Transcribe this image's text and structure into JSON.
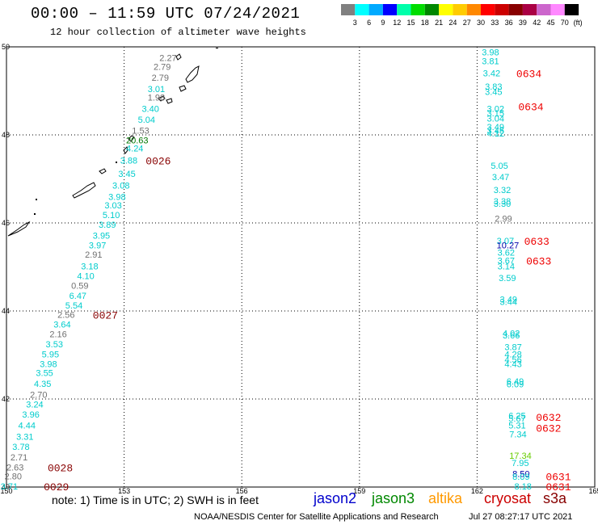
{
  "header": {
    "title": "00:00 – 11:59 UTC 07/24/2021",
    "subtitle": "12 hour collection of altimeter wave heights"
  },
  "colorbar": {
    "unit": "(ft)",
    "colors": [
      "#808080",
      "#00ffff",
      "#00aaff",
      "#0000ff",
      "#00ffaa",
      "#00dd00",
      "#008800",
      "#ffff00",
      "#ffcc00",
      "#ff8800",
      "#ff0000",
      "#cc0000",
      "#880000",
      "#aa0044",
      "#cc66cc",
      "#ff88ff",
      "#000000"
    ],
    "labels": [
      "3",
      "6",
      "9",
      "12",
      "15",
      "18",
      "21",
      "24",
      "27",
      "30",
      "33",
      "36",
      "39",
      "42",
      "45",
      "70"
    ]
  },
  "map": {
    "lon_labels": [
      "150",
      "153",
      "156",
      "159",
      "162",
      "165"
    ],
    "lat_labels": [
      "50",
      "48",
      "46",
      "44",
      "42",
      "40"
    ],
    "lon_range": [
      150,
      165
    ],
    "lat_range": [
      40,
      50
    ]
  },
  "colors": {
    "cyan": "#00cccc",
    "gray": "#707070",
    "darkgreen": "#007700",
    "blue": "#0000aa",
    "lime": "#66cc00",
    "darkred": "#880000",
    "red": "#ee0000"
  },
  "chart_data": {
    "type": "scatter",
    "title": "12 hour collection of altimeter wave heights",
    "units": "ft",
    "track_west": [
      {
        "lon": 153.9,
        "lat": 49.75,
        "value": "2.27",
        "color": "gray"
      },
      {
        "lon": 153.75,
        "lat": 49.55,
        "value": "2.79",
        "color": "gray"
      },
      {
        "lon": 153.7,
        "lat": 49.3,
        "value": "2.79",
        "color": "gray"
      },
      {
        "lon": 153.6,
        "lat": 49.05,
        "value": "3.01",
        "color": "cyan"
      },
      {
        "lon": 153.6,
        "lat": 48.85,
        "value": "1.98",
        "color": "gray"
      },
      {
        "lon": 153.45,
        "lat": 48.6,
        "value": "3.40",
        "color": "cyan"
      },
      {
        "lon": 153.35,
        "lat": 48.35,
        "value": "5.04",
        "color": "cyan"
      },
      {
        "lon": 153.2,
        "lat": 48.1,
        "value": "1.53",
        "color": "gray"
      },
      {
        "lon": 153.05,
        "lat": 47.88,
        "value": "20.63",
        "color": "darkgreen"
      },
      {
        "lon": 153.05,
        "lat": 47.7,
        "value": "4.24",
        "color": "cyan"
      },
      {
        "lon": 152.9,
        "lat": 47.42,
        "value": "3.88",
        "color": "cyan"
      },
      {
        "lon": 152.85,
        "lat": 47.12,
        "value": "3.45",
        "color": "cyan"
      },
      {
        "lon": 152.7,
        "lat": 46.85,
        "value": "3.08",
        "color": "cyan"
      },
      {
        "lon": 152.6,
        "lat": 46.6,
        "value": "3.98",
        "color": "cyan"
      },
      {
        "lon": 152.5,
        "lat": 46.4,
        "value": "3.03",
        "color": "cyan"
      },
      {
        "lon": 152.45,
        "lat": 46.18,
        "value": "5.10",
        "color": "cyan"
      },
      {
        "lon": 152.35,
        "lat": 45.96,
        "value": "3.89",
        "color": "cyan"
      },
      {
        "lon": 152.2,
        "lat": 45.72,
        "value": "3.95",
        "color": "cyan"
      },
      {
        "lon": 152.1,
        "lat": 45.5,
        "value": "3.97",
        "color": "cyan"
      },
      {
        "lon": 152.0,
        "lat": 45.28,
        "value": "2.91",
        "color": "gray"
      },
      {
        "lon": 151.9,
        "lat": 45.02,
        "value": "3.18",
        "color": "cyan"
      },
      {
        "lon": 151.8,
        "lat": 44.8,
        "value": "4.10",
        "color": "cyan"
      },
      {
        "lon": 151.65,
        "lat": 44.58,
        "value": "0.59",
        "color": "gray"
      },
      {
        "lon": 151.6,
        "lat": 44.35,
        "value": "6.47",
        "color": "cyan"
      },
      {
        "lon": 151.5,
        "lat": 44.13,
        "value": "5.54",
        "color": "cyan"
      },
      {
        "lon": 151.3,
        "lat": 43.92,
        "value": "2.56",
        "color": "gray"
      },
      {
        "lon": 151.2,
        "lat": 43.7,
        "value": "3.64",
        "color": "cyan"
      },
      {
        "lon": 151.1,
        "lat": 43.48,
        "value": "2.16",
        "color": "gray"
      },
      {
        "lon": 151.0,
        "lat": 43.25,
        "value": "3.53",
        "color": "cyan"
      },
      {
        "lon": 150.9,
        "lat": 43.02,
        "value": "5.95",
        "color": "cyan"
      },
      {
        "lon": 150.85,
        "lat": 42.8,
        "value": "3.98",
        "color": "cyan"
      },
      {
        "lon": 150.75,
        "lat": 42.6,
        "value": "3.55",
        "color": "cyan"
      },
      {
        "lon": 150.7,
        "lat": 42.35,
        "value": "4.35",
        "color": "cyan"
      },
      {
        "lon": 150.6,
        "lat": 42.1,
        "value": "2.70",
        "color": "gray"
      },
      {
        "lon": 150.5,
        "lat": 41.88,
        "value": "3.24",
        "color": "cyan"
      },
      {
        "lon": 150.4,
        "lat": 41.65,
        "value": "3.96",
        "color": "cyan"
      },
      {
        "lon": 150.3,
        "lat": 41.4,
        "value": "4.44",
        "color": "cyan"
      },
      {
        "lon": 150.25,
        "lat": 41.15,
        "value": "3.31",
        "color": "cyan"
      },
      {
        "lon": 150.15,
        "lat": 40.92,
        "value": "3.78",
        "color": "cyan"
      },
      {
        "lon": 150.1,
        "lat": 40.68,
        "value": "2.71",
        "color": "gray"
      },
      {
        "lon": 150.0,
        "lat": 40.45,
        "value": "2.63",
        "color": "gray"
      },
      {
        "lon": 149.95,
        "lat": 40.25,
        "value": "2.80",
        "color": "gray"
      },
      {
        "lon": 149.85,
        "lat": 40.02,
        "value": "3.71",
        "color": "cyan"
      }
    ],
    "track_west_times": [
      {
        "lon": 153.55,
        "lat": 47.42,
        "value": "0026",
        "color": "darkred"
      },
      {
        "lon": 152.2,
        "lat": 43.92,
        "value": "0027",
        "color": "darkred"
      },
      {
        "lon": 151.05,
        "lat": 40.45,
        "value": "0028",
        "color": "darkred"
      },
      {
        "lon": 150.95,
        "lat": 40.02,
        "value": "0029",
        "color": "darkred"
      }
    ],
    "track_east": [
      {
        "lon": 162.12,
        "lat": 49.88,
        "value": "3.98",
        "color": "cyan"
      },
      {
        "lon": 162.12,
        "lat": 49.68,
        "value": "3.81",
        "color": "cyan"
      },
      {
        "lon": 162.15,
        "lat": 49.4,
        "value": "3.42",
        "color": "cyan"
      },
      {
        "lon": 162.2,
        "lat": 49.1,
        "value": "3.83",
        "color": "cyan"
      },
      {
        "lon": 162.2,
        "lat": 48.98,
        "value": "3.45",
        "color": "cyan"
      },
      {
        "lon": 162.25,
        "lat": 48.6,
        "value": "3.02",
        "color": "cyan"
      },
      {
        "lon": 162.25,
        "lat": 48.5,
        "value": "3.15",
        "color": "cyan"
      },
      {
        "lon": 162.25,
        "lat": 48.38,
        "value": "3.04",
        "color": "cyan"
      },
      {
        "lon": 162.25,
        "lat": 48.18,
        "value": "3.49",
        "color": "cyan"
      },
      {
        "lon": 162.25,
        "lat": 48.1,
        "value": "3.45",
        "color": "cyan"
      },
      {
        "lon": 162.25,
        "lat": 48.04,
        "value": "4.12",
        "color": "cyan"
      },
      {
        "lon": 162.35,
        "lat": 47.3,
        "value": "5.05",
        "color": "cyan"
      },
      {
        "lon": 162.38,
        "lat": 47.05,
        "value": "3.47",
        "color": "cyan"
      },
      {
        "lon": 162.42,
        "lat": 46.75,
        "value": "3.32",
        "color": "cyan"
      },
      {
        "lon": 162.42,
        "lat": 46.5,
        "value": "3.38",
        "color": "cyan"
      },
      {
        "lon": 162.42,
        "lat": 46.44,
        "value": "3.30",
        "color": "cyan"
      },
      {
        "lon": 162.45,
        "lat": 46.1,
        "value": "2.99",
        "color": "gray"
      },
      {
        "lon": 162.5,
        "lat": 45.6,
        "value": "3.07",
        "color": "cyan"
      },
      {
        "lon": 162.5,
        "lat": 45.5,
        "value": "10.27",
        "color": "blue"
      },
      {
        "lon": 162.52,
        "lat": 45.33,
        "value": "3.62",
        "color": "cyan"
      },
      {
        "lon": 162.52,
        "lat": 45.15,
        "value": "3.67",
        "color": "cyan"
      },
      {
        "lon": 162.52,
        "lat": 45.02,
        "value": "3.14",
        "color": "cyan"
      },
      {
        "lon": 162.55,
        "lat": 44.75,
        "value": "3.59",
        "color": "cyan"
      },
      {
        "lon": 162.58,
        "lat": 44.27,
        "value": "3.49",
        "color": "cyan"
      },
      {
        "lon": 162.58,
        "lat": 44.21,
        "value": "3.44",
        "color": "cyan"
      },
      {
        "lon": 162.65,
        "lat": 43.5,
        "value": "4.02",
        "color": "cyan"
      },
      {
        "lon": 162.65,
        "lat": 43.45,
        "value": "3.66",
        "color": "cyan"
      },
      {
        "lon": 162.7,
        "lat": 43.18,
        "value": "3.87",
        "color": "cyan"
      },
      {
        "lon": 162.7,
        "lat": 43.02,
        "value": "4.28",
        "color": "cyan"
      },
      {
        "lon": 162.7,
        "lat": 42.9,
        "value": "4.56",
        "color": "cyan"
      },
      {
        "lon": 162.7,
        "lat": 42.8,
        "value": "4.43",
        "color": "cyan"
      },
      {
        "lon": 162.75,
        "lat": 42.4,
        "value": "6.49",
        "color": "cyan"
      },
      {
        "lon": 162.75,
        "lat": 42.34,
        "value": "6.09",
        "color": "cyan"
      },
      {
        "lon": 162.8,
        "lat": 41.62,
        "value": "6.25",
        "color": "cyan"
      },
      {
        "lon": 162.8,
        "lat": 41.56,
        "value": "5.67",
        "color": "cyan"
      },
      {
        "lon": 162.8,
        "lat": 41.4,
        "value": "5.31",
        "color": "cyan"
      },
      {
        "lon": 162.82,
        "lat": 41.2,
        "value": "7.34",
        "color": "cyan"
      },
      {
        "lon": 162.82,
        "lat": 40.72,
        "value": "17.34",
        "color": "lime"
      },
      {
        "lon": 162.88,
        "lat": 40.55,
        "value": "7.95",
        "color": "cyan"
      },
      {
        "lon": 162.9,
        "lat": 40.3,
        "value": "8.50",
        "color": "blue"
      },
      {
        "lon": 162.9,
        "lat": 40.24,
        "value": "8.09",
        "color": "cyan"
      },
      {
        "lon": 162.95,
        "lat": 40.02,
        "value": "8.18",
        "color": "cyan"
      }
    ],
    "track_east_times": [
      {
        "lon": 163.0,
        "lat": 49.4,
        "value": "0634",
        "color": "red"
      },
      {
        "lon": 163.05,
        "lat": 48.65,
        "value": "0634",
        "color": "red"
      },
      {
        "lon": 163.2,
        "lat": 45.6,
        "value": "0633",
        "color": "red"
      },
      {
        "lon": 163.25,
        "lat": 45.15,
        "value": "0633",
        "color": "red"
      },
      {
        "lon": 163.5,
        "lat": 41.6,
        "value": "0632",
        "color": "red"
      },
      {
        "lon": 163.5,
        "lat": 41.35,
        "value": "0632",
        "color": "red"
      },
      {
        "lon": 163.75,
        "lat": 40.25,
        "value": "0631",
        "color": "red"
      },
      {
        "lon": 163.75,
        "lat": 40.02,
        "value": "0631",
        "color": "red"
      }
    ]
  },
  "footer": {
    "note": "note: 1) Time is in UTC; 2) SWH is in feet",
    "legend": [
      {
        "label": "jason2",
        "color": "#0000cc"
      },
      {
        "label": "jason3",
        "color": "#008800"
      },
      {
        "label": "altika",
        "color": "#ff9900"
      },
      {
        "label": "cryosat",
        "color": "#cc0000"
      },
      {
        "label": "s3a",
        "color": "#880000"
      }
    ],
    "credit": "NOAA/NESDIS Center for Satellite Applications and Research",
    "timestamp": "Jul 27 08:27:17 UTC 2021"
  }
}
